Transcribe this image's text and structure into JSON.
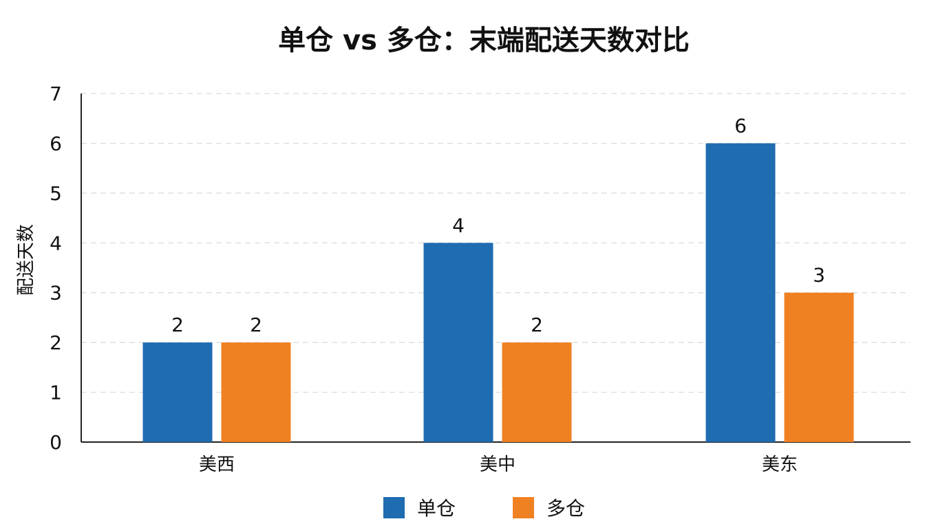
{
  "chart_data": {
    "type": "bar",
    "title": "单仓 vs 多仓：末端配送天数对比",
    "xlabel": "",
    "ylabel": "配送天数",
    "categories": [
      "美西",
      "美中",
      "美东"
    ],
    "series": [
      {
        "name": "单仓",
        "values": [
          2,
          4,
          6
        ],
        "color": "#1f6cb0"
      },
      {
        "name": "多仓",
        "values": [
          2,
          2,
          3
        ],
        "color": "#f08122"
      }
    ],
    "ylim": [
      0,
      7
    ],
    "yticks": [
      0,
      1,
      2,
      3,
      4,
      5,
      6,
      7
    ],
    "grid": true,
    "legend_position": "bottom",
    "data_labels": true
  }
}
